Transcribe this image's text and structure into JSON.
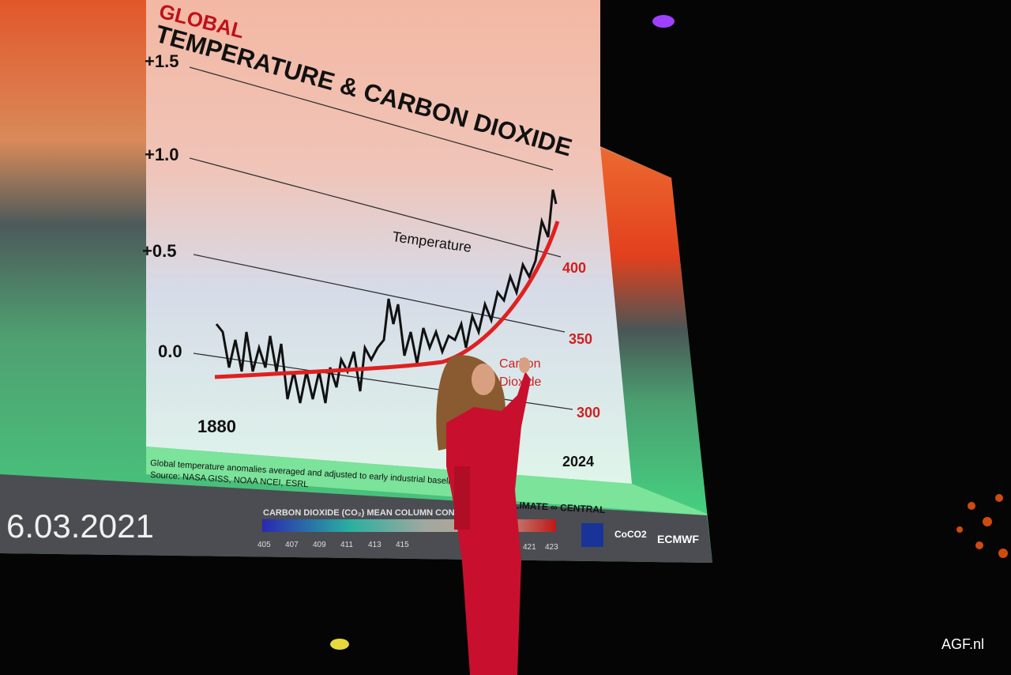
{
  "slide": {
    "supertitle": "GLOBAL",
    "title_line1": "TEMPERATURE & CARBON DIOXIDE",
    "y_ticks": [
      "+1.5",
      "+1.0",
      "+0.5",
      "0.0"
    ],
    "co2_ticks": [
      "400",
      "350",
      "300"
    ],
    "temperature_label": "Temperature",
    "co2_label_1": "Carbon",
    "co2_label_2": "Dioxide",
    "start_year": "1880",
    "end_year": "2024",
    "caption_line1": "Global temperature anomalies averaged and adjusted to early industrial baseline (1881",
    "caption_line2": "Source: NASA GISS, NOAA NCEI, ESRL",
    "brand": "LIMATE ∞ CENTRAL"
  },
  "footer": {
    "date": "6.03.2021",
    "colorbar_title": "CARBON DIOXIDE (CO₂) MEAN COLUMN CONCEN",
    "colorbar_ticks": [
      "405",
      "407",
      "409",
      "411",
      "413",
      "415",
      "421",
      "423"
    ],
    "logos": [
      "EU",
      "CoCO2",
      "ECMWF"
    ]
  },
  "watermark": "AGF.nl",
  "colors": {
    "temp_line": "#111111",
    "co2_line": "#e02020",
    "speaker_suit": "#c8102e"
  }
}
